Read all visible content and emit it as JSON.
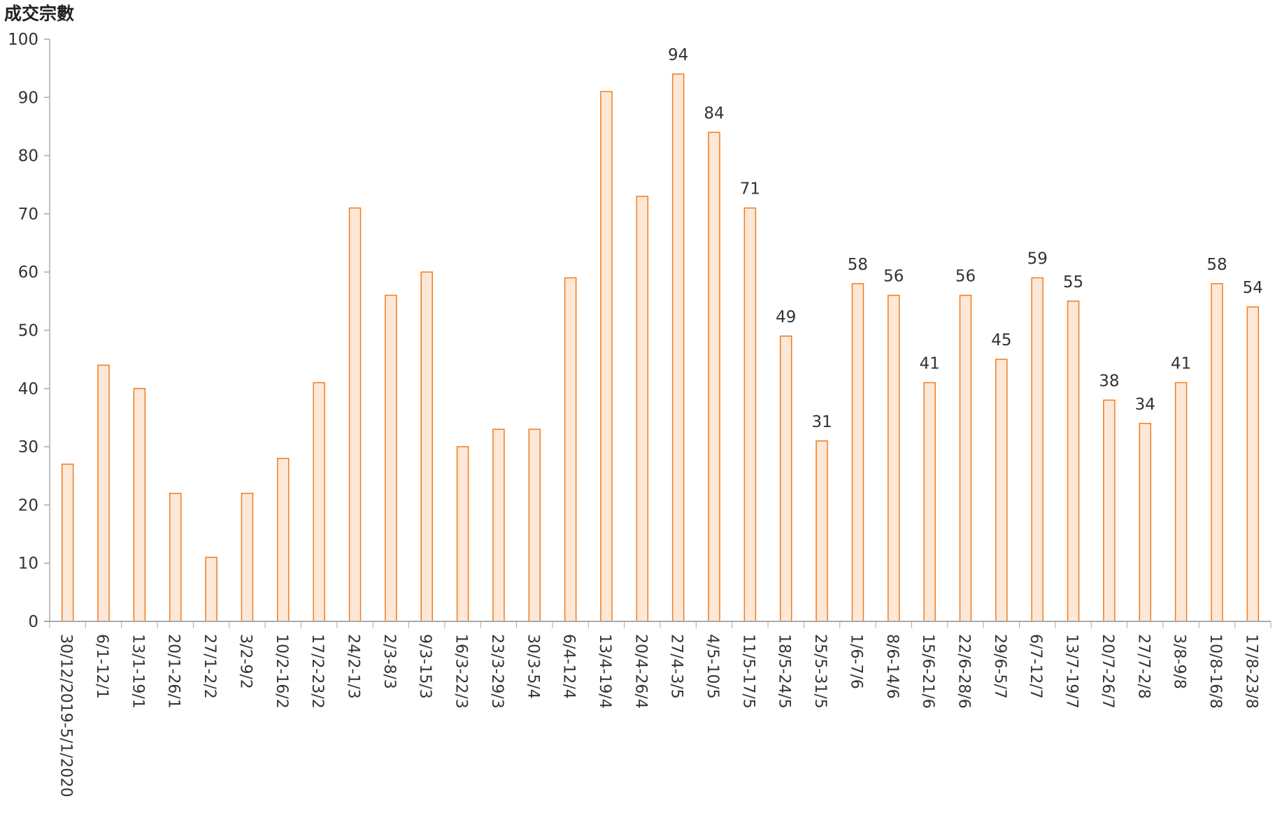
{
  "chart_data": {
    "type": "bar",
    "title": "",
    "xlabel": "",
    "ylabel": "成交宗數",
    "ylim": [
      0,
      100
    ],
    "yticks": [
      0,
      10,
      20,
      30,
      40,
      50,
      60,
      70,
      80,
      90,
      100
    ],
    "grid": false,
    "bar_fill": "#fde8d8",
    "bar_stroke": "#f07c1e",
    "categories": [
      "30/12/2019-5/1/2020",
      "6/1-12/1",
      "13/1-19/1",
      "20/1-26/1",
      "27/1-2/2",
      "3/2-9/2",
      "10/2-16/2",
      "17/2-23/2",
      "24/2-1/3",
      "2/3-8/3",
      "9/3-15/3",
      "16/3-22/3",
      "23/3-29/3",
      "30/3-5/4",
      "6/4-12/4",
      "13/4-19/4",
      "20/4-26/4",
      "27/4-3/5",
      "4/5-10/5",
      "11/5-17/5",
      "18/5-24/5",
      "25/5-31/5",
      "1/6-7/6",
      "8/6-14/6",
      "15/6-21/6",
      "22/6-28/6",
      "29/6-5/7",
      "6/7-12/7",
      "13/7-19/7",
      "20/7-26/7",
      "27/7-2/8",
      "3/8-9/8",
      "10/8-16/8",
      "17/8-23/8"
    ],
    "values": [
      27,
      44,
      40,
      22,
      11,
      22,
      28,
      41,
      71,
      56,
      60,
      30,
      33,
      33,
      59,
      91,
      73,
      94,
      84,
      71,
      49,
      31,
      58,
      56,
      41,
      56,
      45,
      59,
      55,
      38,
      34,
      41,
      58,
      54
    ],
    "data_labels": [
      null,
      null,
      null,
      null,
      null,
      null,
      null,
      null,
      null,
      null,
      null,
      null,
      null,
      null,
      null,
      null,
      null,
      "94",
      "84",
      "71",
      "49",
      "31",
      "58",
      "56",
      "41",
      "56",
      "45",
      "59",
      "55",
      "38",
      "34",
      "41",
      "58",
      "54"
    ]
  }
}
